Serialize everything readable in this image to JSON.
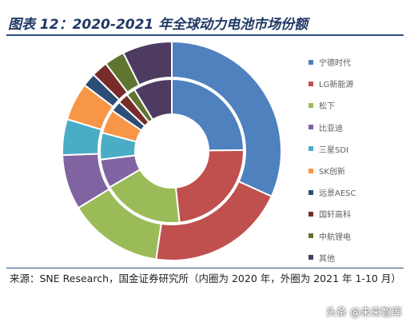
{
  "header": {
    "title": "图表 12：2020-2021 年全球动力电池市场份额"
  },
  "chart_data": {
    "type": "pie",
    "categories": [
      "宁德时代",
      "LG新能源",
      "松下",
      "比亚迪",
      "三星SDI",
      "SK创新",
      "远景AESC",
      "国轩高科",
      "中航锂电",
      "其他"
    ],
    "colors": [
      "#4e81bd",
      "#c0504d",
      "#9bbb59",
      "#8064a2",
      "#4bacc6",
      "#f79646",
      "#2c4d75",
      "#772c2a",
      "#5f7530",
      "#4d3b62"
    ],
    "series": [
      {
        "ring": "inner",
        "values": [
          24.8,
          23.5,
          18.3,
          6.5,
          6.0,
          5.4,
          2.4,
          2.4,
          2.0,
          8.7
        ]
      },
      {
        "ring": "outer",
        "values": [
          31.8,
          20.5,
          14.0,
          8.1,
          5.3,
          5.6,
          2.0,
          2.4,
          3.0,
          7.3
        ]
      }
    ]
  },
  "footer": {
    "source": "来源：SNE Research，国金证券研究所（内圈为 2020 年，外圈为 2021 年 1-10 月）",
    "watermark": "头条 @未来智库"
  }
}
